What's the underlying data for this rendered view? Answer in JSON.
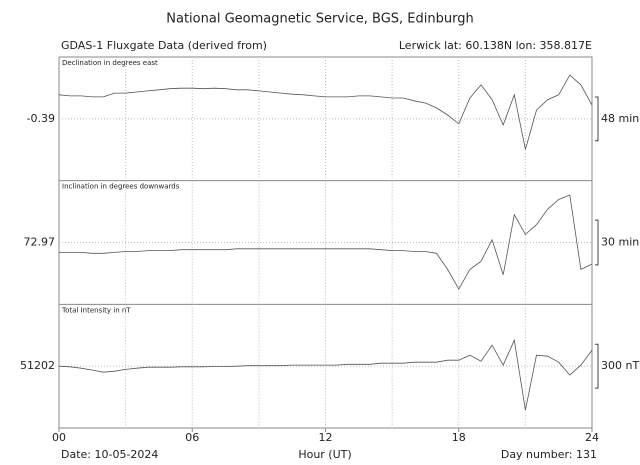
{
  "header": {
    "title": "National Geomagnetic Service, BGS, Edinburgh",
    "left": "GDAS-1 Fluxgate Data (derived from)",
    "right": "Lerwick lat: 60.138N lon: 358.817E"
  },
  "footer": {
    "date": "Date: 10-05-2024",
    "day": "Day number: 131"
  },
  "x_axis": {
    "label": "Hour (UT)",
    "xlim": [
      0,
      24
    ],
    "xticks": [
      {
        "value": 0,
        "label": "00"
      },
      {
        "value": 6,
        "label": "06"
      },
      12,
      18,
      24
    ]
  },
  "chart_data": [
    {
      "type": "line",
      "title": "Declination in degrees east",
      "color": "#555555",
      "x": [
        0,
        0.5,
        1,
        1.5,
        2,
        2.5,
        3,
        3.5,
        4,
        4.5,
        5,
        5.5,
        6,
        6.5,
        7,
        7.5,
        8,
        8.5,
        9,
        9.5,
        10,
        10.5,
        11,
        11.5,
        12,
        12.5,
        13,
        13.5,
        14,
        14.5,
        15,
        15.5,
        16,
        16.5,
        17,
        17.5,
        18,
        18.5,
        19,
        19.5,
        20,
        20.5,
        21,
        21.5,
        22,
        22.5,
        23,
        23.5,
        24
      ],
      "values": [
        0.05,
        0.03,
        0.03,
        0.01,
        0.01,
        0.08,
        0.08,
        0.1,
        0.12,
        0.14,
        0.16,
        0.17,
        0.17,
        0.16,
        0.17,
        0.16,
        0.14,
        0.14,
        0.12,
        0.1,
        0.08,
        0.06,
        0.05,
        0.03,
        0.01,
        0.01,
        0.01,
        0.03,
        0.03,
        0.01,
        -0.01,
        -0.01,
        -0.06,
        -0.1,
        -0.19,
        -0.32,
        -0.48,
        -0.01,
        0.23,
        -0.04,
        -0.5,
        0.05,
        -0.95,
        -0.23,
        -0.04,
        0.05,
        0.41,
        0.23,
        -0.14
      ],
      "xlim": [
        0,
        24
      ],
      "xticks": [
        3,
        6,
        9,
        12,
        15,
        18,
        21
      ],
      "ylim": [
        -1.52,
        0.74
      ],
      "yticks": [
        -0.39
      ],
      "scale_bar": {
        "value": 0.8,
        "label": "48 min"
      }
    },
    {
      "type": "line",
      "title": "Inclination in degrees downwards",
      "color": "#555555",
      "x": [
        0,
        0.5,
        1,
        1.5,
        2,
        2.5,
        3,
        3.5,
        4,
        4.5,
        5,
        5.5,
        6,
        6.5,
        7,
        7.5,
        8,
        8.5,
        9,
        9.5,
        10,
        10.5,
        11,
        11.5,
        12,
        12.5,
        13,
        13.5,
        14,
        14.5,
        15,
        15.5,
        16,
        16.5,
        17,
        17.5,
        18,
        18.5,
        19,
        19.5,
        20,
        20.5,
        21,
        21.5,
        22,
        22.5,
        23,
        23.5,
        24
      ],
      "values": [
        72.86,
        72.86,
        72.86,
        72.85,
        72.85,
        72.86,
        72.87,
        72.87,
        72.88,
        72.88,
        72.88,
        72.89,
        72.89,
        72.89,
        72.89,
        72.89,
        72.9,
        72.9,
        72.9,
        72.9,
        72.9,
        72.9,
        72.9,
        72.9,
        72.9,
        72.9,
        72.9,
        72.9,
        72.9,
        72.89,
        72.88,
        72.88,
        72.87,
        72.87,
        72.85,
        72.67,
        72.45,
        72.67,
        72.76,
        73.0,
        72.61,
        73.28,
        73.06,
        73.17,
        73.34,
        73.45,
        73.5,
        72.67,
        72.73
      ],
      "xlim": [
        0,
        24
      ],
      "xticks": [
        3,
        6,
        9,
        12,
        15,
        18,
        21
      ],
      "ylim": [
        72.28,
        73.66
      ],
      "yticks": [
        72.97
      ],
      "scale_bar": {
        "value": 0.5,
        "label": "30 min"
      }
    },
    {
      "type": "line",
      "title": "Total Intensity in nT",
      "color": "#555555",
      "x": [
        0,
        0.5,
        1,
        1.5,
        2,
        2.5,
        3,
        3.5,
        4,
        4.5,
        5,
        5.5,
        6,
        6.5,
        7,
        7.5,
        8,
        8.5,
        9,
        9.5,
        10,
        10.5,
        11,
        11.5,
        12,
        12.5,
        13,
        13.5,
        14,
        14.5,
        15,
        15.5,
        16,
        16.5,
        17,
        17.5,
        18,
        18.5,
        19,
        19.5,
        20,
        20.5,
        21,
        21.5,
        22,
        22.5,
        23,
        23.5,
        24
      ],
      "values": [
        51202,
        51198,
        51188,
        51175,
        51161,
        51168,
        51180,
        51188,
        51195,
        51195,
        51195,
        51198,
        51198,
        51198,
        51200,
        51200,
        51202,
        51205,
        51205,
        51205,
        51205,
        51209,
        51209,
        51209,
        51209,
        51209,
        51215,
        51215,
        51215,
        51222,
        51222,
        51222,
        51229,
        51229,
        51229,
        51243,
        51243,
        51277,
        51236,
        51345,
        51209,
        51379,
        50902,
        51277,
        51270,
        51229,
        51141,
        51209,
        51311
      ],
      "xlim": [
        0,
        24
      ],
      "xticks": [
        3,
        6,
        9,
        12,
        15,
        18,
        21
      ],
      "ylim": [
        50780,
        51624
      ],
      "yticks": [
        51202
      ],
      "scale_bar": {
        "value": 300,
        "label": "300 nT"
      }
    }
  ]
}
